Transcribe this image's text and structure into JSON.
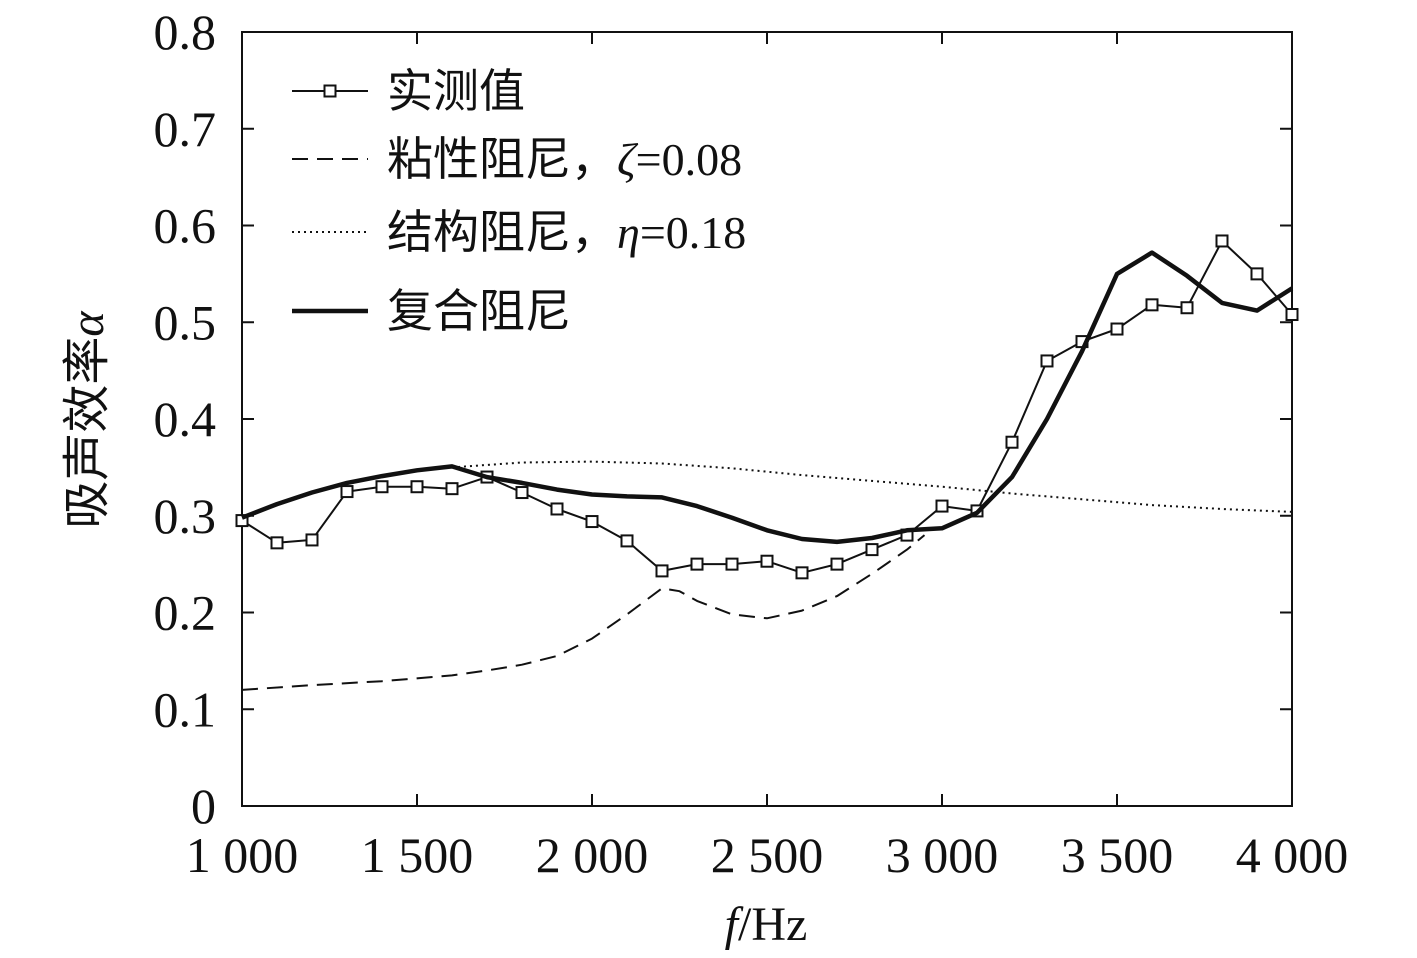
{
  "chart_data": {
    "type": "line",
    "title": "",
    "xlabel_italic": "f",
    "xlabel_unit": "/Hz",
    "ylabel_text": "吸声效率",
    "ylabel_symbol": "α",
    "xlim": [
      1000,
      4000
    ],
    "ylim": [
      0,
      0.8
    ],
    "xticks": [
      1000,
      1500,
      2000,
      2500,
      3000,
      3500,
      4000
    ],
    "xtick_labels": [
      "1 000",
      "1 500",
      "2 000",
      "2 500",
      "3 000",
      "3 500",
      "4 000"
    ],
    "yticks": [
      0,
      0.1,
      0.2,
      0.3,
      0.4,
      0.5,
      0.6,
      0.7,
      0.8
    ],
    "ytick_labels": [
      "0",
      "0.1",
      "0.2",
      "0.3",
      "0.4",
      "0.5",
      "0.6",
      "0.7",
      "0.8"
    ],
    "grid": false,
    "legend_position": "top-left",
    "series": [
      {
        "name": "实测值",
        "label_text": "实测值",
        "label_param": "",
        "style": "line-square-markers",
        "x": [
          1000,
          1100,
          1200,
          1300,
          1400,
          1500,
          1600,
          1700,
          1800,
          1900,
          2000,
          2100,
          2200,
          2300,
          2400,
          2500,
          2600,
          2700,
          2800,
          2900,
          3000,
          3100,
          3200,
          3300,
          3400,
          3500,
          3600,
          3700,
          3800,
          3900,
          4000
        ],
        "y": [
          0.295,
          0.272,
          0.275,
          0.325,
          0.33,
          0.33,
          0.328,
          0.34,
          0.324,
          0.307,
          0.294,
          0.274,
          0.243,
          0.25,
          0.25,
          0.253,
          0.241,
          0.25,
          0.265,
          0.28,
          0.31,
          0.305,
          0.376,
          0.46,
          0.48,
          0.493,
          0.518,
          0.515,
          0.584,
          0.55,
          0.508
        ]
      },
      {
        "name": "粘性阻尼，ζ=0.08",
        "label_text": "粘性阻尼，",
        "label_symbol": "ζ",
        "label_param": "=0.08",
        "style": "dashed",
        "x": [
          1000,
          1200,
          1400,
          1600,
          1700,
          1800,
          1900,
          2000,
          2100,
          2200,
          2250,
          2300,
          2400,
          2500,
          2600,
          2700,
          2800,
          2900,
          2950
        ],
        "y": [
          0.12,
          0.125,
          0.129,
          0.135,
          0.14,
          0.146,
          0.155,
          0.173,
          0.198,
          0.225,
          0.222,
          0.212,
          0.198,
          0.194,
          0.202,
          0.217,
          0.24,
          0.265,
          0.28
        ]
      },
      {
        "name": "结构阻尼，η=0.18",
        "label_text": "结构阻尼，",
        "label_symbol": "η",
        "label_param": "=0.18",
        "style": "dotted",
        "x": [
          1600,
          1800,
          2000,
          2200,
          2400,
          2600,
          2800,
          3000,
          3200,
          3400,
          3600,
          3800,
          4000
        ],
        "y": [
          0.35,
          0.355,
          0.356,
          0.354,
          0.349,
          0.342,
          0.336,
          0.33,
          0.323,
          0.317,
          0.311,
          0.307,
          0.304
        ]
      },
      {
        "name": "复合阻尼",
        "label_text": "复合阻尼",
        "label_param": "",
        "style": "thick-solid",
        "x": [
          1000,
          1100,
          1200,
          1300,
          1400,
          1500,
          1600,
          1700,
          1800,
          1900,
          2000,
          2100,
          2200,
          2300,
          2400,
          2500,
          2600,
          2700,
          2800,
          2900,
          3000,
          3100,
          3200,
          3300,
          3400,
          3500,
          3600,
          3700,
          3800,
          3900,
          4000
        ],
        "y": [
          0.298,
          0.312,
          0.324,
          0.334,
          0.341,
          0.347,
          0.351,
          0.34,
          0.334,
          0.327,
          0.322,
          0.32,
          0.319,
          0.31,
          0.298,
          0.285,
          0.276,
          0.273,
          0.277,
          0.285,
          0.287,
          0.303,
          0.34,
          0.4,
          0.47,
          0.55,
          0.572,
          0.548,
          0.52,
          0.512,
          0.535
        ]
      }
    ]
  }
}
